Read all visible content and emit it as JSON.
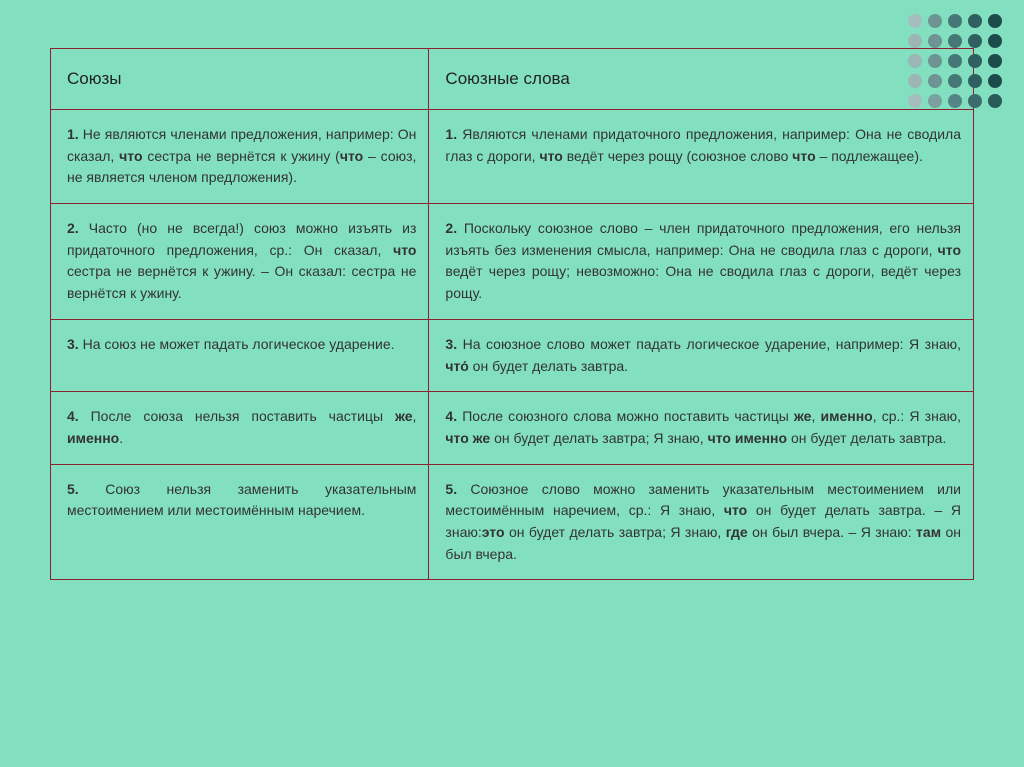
{
  "background_color": "#82e0c0",
  "border_color": "#8b2030",
  "dots": {
    "grid": "5x5",
    "colors": [
      [
        "#a5bdbd",
        "#6d9393",
        "#467777",
        "#2f5f5f",
        "#1b4b4b"
      ],
      [
        "#9cb5b5",
        "#6d9393",
        "#467777",
        "#2f5f5f",
        "#1b4b4b"
      ],
      [
        "#9cb5b5",
        "#6d9393",
        "#467777",
        "#2f5f5f",
        "#1b4b4b"
      ],
      [
        "#9cb5b5",
        "#6d9393",
        "#467777",
        "#2f5f5f",
        "#1b4b4b"
      ],
      [
        "#a5bdbd",
        "#7aa0a0",
        "#548585",
        "#3b6d6d",
        "#295a5a"
      ]
    ]
  },
  "table": {
    "headers": {
      "left": "Союзы",
      "right": "Союзные слова"
    },
    "rows": [
      {
        "left": "<b>1.</b> Не являются членами предложения, например: Он сказал, <b>что</b> сестра не вернётся к ужину (<b>что</b> – союз, не является членом предложения).",
        "right": "<b>1.</b> Являются членами придаточного предложения, например: Она не сводила глаз с дороги, <b>что</b> ведёт через рощу (союзное слово <b>что</b> – подлежащее)."
      },
      {
        "left": "<b>2.</b> Часто (но не всегда!) союз можно изъять из придаточного предложения, ср.: Он сказал, <b>что</b> сестра не вернётся к ужину. – Он сказал: сестра не вернётся к ужину.",
        "right": "<b>2.</b> Поскольку союзное слово – член придаточного предложения, его нельзя изъять без изменения смысла, например: Она не сводила глаз с дороги, <b>что</b> ведёт через рощу; невозможно: Она не сводила глаз с дороги, ведёт через рощу."
      },
      {
        "left": "<b>3.</b> На союз не может падать логическое ударение.",
        "right": "<b>3.</b> На союзное слово может падать логическое ударение, например: Я знаю, <b>что́</b> он будет делать завтра."
      },
      {
        "left": "<b>4.</b> После союза нельзя поставить частицы <b>же</b>, <b>именно</b>.",
        "right": "<b>4.</b> После союзного слова можно поставить частицы <b>же</b>, <b>именно</b>, ср.: Я знаю, <b>что же</b> он будет делать завтра; Я знаю, <b>что именно</b> он будет делать завтра."
      },
      {
        "left": "<b>5.</b> Союз нельзя заменить указательным местоимением или местоимённым наречием.",
        "right": "<b>5.</b> Союзное слово можно заменить указательным местоимением или местоимённым наречием, ср.: Я знаю, <b>что</b> он будет делать завтра. – Я знаю:<b>это</b> он будет делать завтра; Я знаю, <b>где</b> он был вчера. – Я знаю: <b>там</b> он был вчера."
      }
    ]
  }
}
